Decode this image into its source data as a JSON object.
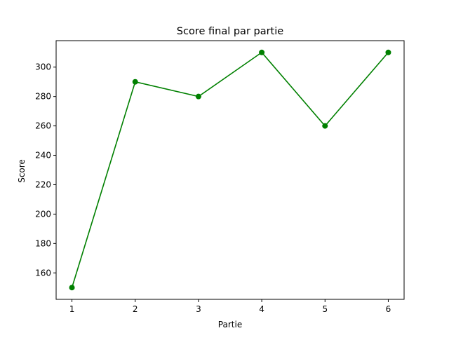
{
  "chart_data": {
    "type": "line",
    "title": "Score final par partie",
    "xlabel": "Partie",
    "ylabel": "Score",
    "x": [
      1,
      2,
      3,
      4,
      5,
      6
    ],
    "series": [
      {
        "values": [
          150,
          290,
          280,
          310,
          260,
          310
        ],
        "color": "#008000",
        "marker": "circle"
      }
    ],
    "xlim": [
      0.75,
      6.25
    ],
    "ylim": [
      142,
      318
    ],
    "xticks": [
      1,
      2,
      3,
      4,
      5,
      6
    ],
    "yticks": [
      160,
      180,
      200,
      220,
      240,
      260,
      280,
      300
    ],
    "grid": false,
    "legend": "none"
  }
}
